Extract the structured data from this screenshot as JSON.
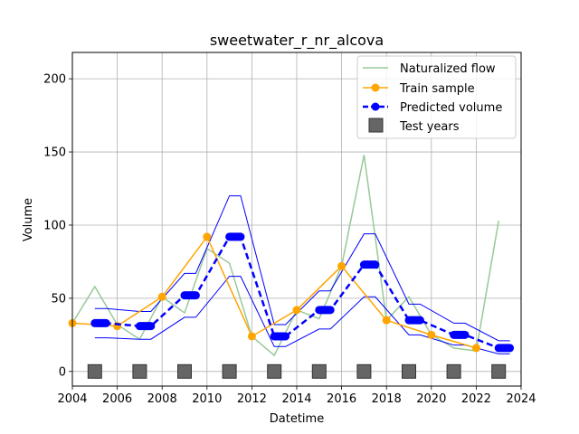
{
  "chart_data": {
    "type": "line",
    "title": "sweetwater_r_nr_alcova",
    "xlabel": "Datetime",
    "ylabel": "Volume",
    "xlim": [
      2004,
      2024
    ],
    "ylim": [
      -10,
      218
    ],
    "xticks": [
      2004,
      2006,
      2008,
      2010,
      2012,
      2014,
      2016,
      2018,
      2020,
      2022,
      2024
    ],
    "yticks": [
      0,
      50,
      100,
      150,
      200
    ],
    "grid": true,
    "legend_position": "top-right",
    "legend": {
      "naturalized": "Naturalized flow",
      "train": "Train sample",
      "predicted": "Predicted volume",
      "test": "Test years"
    },
    "colors": {
      "naturalized": "#98c998",
      "train": "#ffa500",
      "predicted": "#0000ff",
      "test": "#666666"
    },
    "series": [
      {
        "name": "Naturalized flow",
        "x": [
          2004,
          2005,
          2006,
          2007,
          2008,
          2009,
          2010,
          2011,
          2012,
          2013,
          2014,
          2015,
          2016,
          2017,
          2018,
          2019,
          2020,
          2021,
          2022,
          2023
        ],
        "values": [
          33,
          58,
          32,
          22,
          51,
          40,
          84,
          74,
          24,
          11,
          42,
          36,
          72,
          148,
          35,
          51,
          25,
          16,
          14,
          103
        ]
      },
      {
        "name": "Train sample",
        "x": [
          2004,
          2006,
          2008,
          2010,
          2012,
          2014,
          2016,
          2018,
          2020,
          2022
        ],
        "values": [
          33,
          31,
          51,
          92,
          24,
          42,
          72,
          35,
          25,
          16
        ]
      },
      {
        "name": "Predicted volume",
        "x": [
          2005,
          2007,
          2009,
          2011,
          2013,
          2015,
          2017,
          2019,
          2021,
          2023
        ],
        "values": [
          33,
          31,
          52,
          92,
          24,
          42,
          73,
          35,
          25,
          16
        ],
        "lower": [
          23,
          22,
          37,
          65,
          17,
          29,
          51,
          25,
          18,
          12
        ],
        "upper": [
          43,
          41,
          67,
          120,
          32,
          55,
          94,
          46,
          33,
          21
        ]
      },
      {
        "name": "Test years",
        "x": [
          2005,
          2007,
          2009,
          2011,
          2013,
          2015,
          2017,
          2019,
          2021,
          2023
        ],
        "values": [
          0,
          0,
          0,
          0,
          0,
          0,
          0,
          0,
          0,
          0
        ]
      }
    ]
  }
}
